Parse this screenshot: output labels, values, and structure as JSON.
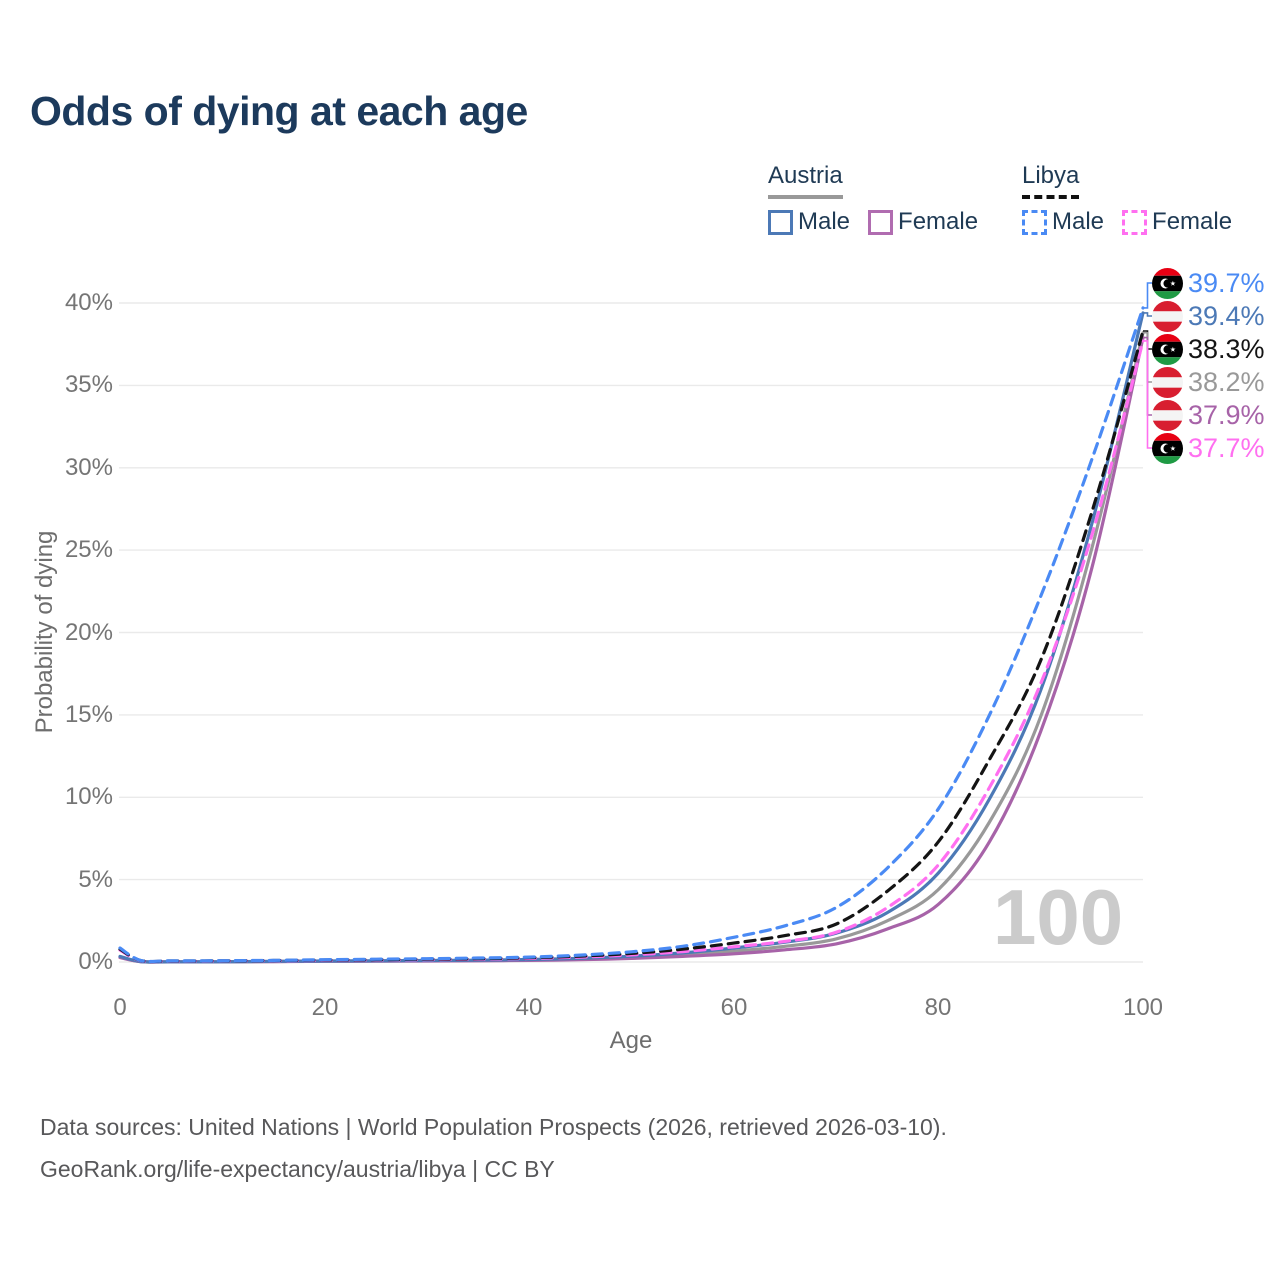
{
  "title": "Odds of dying at each age",
  "watermark": "100",
  "legend": {
    "austria": {
      "label": "Austria",
      "male_label": "Male",
      "female_label": "Female"
    },
    "libya": {
      "label": "Libya",
      "male_label": "Male",
      "female_label": "Female"
    }
  },
  "footer": {
    "line1": "Data sources: United Nations | World Population Prospects (2026, retrieved 2026-03-10).",
    "line2": "GeoRank.org/life-expectancy/austria/libya | CC BY"
  },
  "colors": {
    "title": "#1C3A5C",
    "legend_text": "#1F3A54",
    "axis_text": "#757575",
    "grid": "#EAEAEA",
    "watermark": "#CBCBCB",
    "footer_text": "#58585A",
    "austria_male": "#4C79B6",
    "austria_female": "#A763A8",
    "austria_both": "#999999",
    "libya_male": "#4A8AF4",
    "libya_female": "#FF6FF0",
    "libya_both": "#141414"
  },
  "chart_data": {
    "type": "line",
    "title": "Odds of dying at each age",
    "xlabel": "Age",
    "ylabel": "Probability of dying",
    "xlim": [
      0,
      100
    ],
    "ylim_percent": [
      0,
      40
    ],
    "x_ticks": [
      0,
      20,
      40,
      60,
      80,
      100
    ],
    "y_ticks_percent": [
      0,
      5,
      10,
      15,
      20,
      25,
      30,
      35,
      40
    ],
    "grid": "horizontal",
    "legend_position": "top-right",
    "hover_age": "100",
    "series": [
      {
        "id": "austria_both",
        "country": "Austria",
        "sex": "both",
        "color": "#999999",
        "dashed": false,
        "points": [
          [
            0,
            0.3
          ],
          [
            2,
            0.026
          ],
          [
            5,
            0.01
          ],
          [
            10,
            0.012
          ],
          [
            15,
            0.03
          ],
          [
            20,
            0.05
          ],
          [
            25,
            0.06
          ],
          [
            30,
            0.07
          ],
          [
            35,
            0.09
          ],
          [
            40,
            0.12
          ],
          [
            45,
            0.18
          ],
          [
            50,
            0.28
          ],
          [
            55,
            0.44
          ],
          [
            60,
            0.66
          ],
          [
            65,
            0.95
          ],
          [
            70,
            1.4
          ],
          [
            75,
            2.5
          ],
          [
            80,
            4.4
          ],
          [
            85,
            8.5
          ],
          [
            90,
            14.9
          ],
          [
            95,
            25.1
          ],
          [
            100,
            38.2
          ]
        ]
      },
      {
        "id": "austria_female",
        "country": "Austria",
        "sex": "female",
        "color": "#A763A8",
        "dashed": false,
        "points": [
          [
            0,
            0.27
          ],
          [
            2,
            0.022
          ],
          [
            5,
            0.009
          ],
          [
            10,
            0.01
          ],
          [
            15,
            0.025
          ],
          [
            20,
            0.04
          ],
          [
            25,
            0.05
          ],
          [
            30,
            0.06
          ],
          [
            35,
            0.075
          ],
          [
            40,
            0.1
          ],
          [
            45,
            0.14
          ],
          [
            50,
            0.22
          ],
          [
            55,
            0.34
          ],
          [
            60,
            0.5
          ],
          [
            65,
            0.74
          ],
          [
            70,
            1.1
          ],
          [
            75,
            2.0
          ],
          [
            80,
            3.5
          ],
          [
            85,
            7.3
          ],
          [
            90,
            14.0
          ],
          [
            95,
            23.9
          ],
          [
            100,
            37.9
          ]
        ]
      },
      {
        "id": "austria_male",
        "country": "Austria",
        "sex": "male",
        "color": "#4C79B6",
        "dashed": false,
        "points": [
          [
            0,
            0.34
          ],
          [
            2,
            0.03
          ],
          [
            5,
            0.012
          ],
          [
            10,
            0.014
          ],
          [
            15,
            0.04
          ],
          [
            20,
            0.06
          ],
          [
            25,
            0.07
          ],
          [
            30,
            0.09
          ],
          [
            35,
            0.11
          ],
          [
            40,
            0.15
          ],
          [
            45,
            0.22
          ],
          [
            50,
            0.35
          ],
          [
            55,
            0.55
          ],
          [
            60,
            0.85
          ],
          [
            65,
            1.2
          ],
          [
            70,
            1.75
          ],
          [
            75,
            3.0
          ],
          [
            80,
            5.4
          ],
          [
            85,
            9.9
          ],
          [
            90,
            16.5
          ],
          [
            95,
            26.6
          ],
          [
            100,
            39.4
          ]
        ]
      },
      {
        "id": "libya_female",
        "country": "Libya",
        "sex": "female",
        "color": "#FF6FF0",
        "dashed": true,
        "points": [
          [
            0,
            0.72
          ],
          [
            2,
            0.08
          ],
          [
            5,
            0.05
          ],
          [
            10,
            0.06
          ],
          [
            15,
            0.08
          ],
          [
            20,
            0.1
          ],
          [
            25,
            0.12
          ],
          [
            30,
            0.14
          ],
          [
            35,
            0.17
          ],
          [
            40,
            0.22
          ],
          [
            45,
            0.3
          ],
          [
            50,
            0.43
          ],
          [
            55,
            0.63
          ],
          [
            60,
            0.92
          ],
          [
            65,
            1.25
          ],
          [
            70,
            1.8
          ],
          [
            75,
            3.3
          ],
          [
            80,
            5.9
          ],
          [
            85,
            10.6
          ],
          [
            90,
            16.9
          ],
          [
            95,
            25.9
          ],
          [
            100,
            37.7
          ]
        ]
      },
      {
        "id": "libya_both",
        "country": "Libya",
        "sex": "both",
        "color": "#141414",
        "dashed": true,
        "points": [
          [
            0,
            0.78
          ],
          [
            2,
            0.09
          ],
          [
            5,
            0.06
          ],
          [
            10,
            0.07
          ],
          [
            15,
            0.09
          ],
          [
            20,
            0.12
          ],
          [
            25,
            0.14
          ],
          [
            30,
            0.17
          ],
          [
            35,
            0.2
          ],
          [
            40,
            0.26
          ],
          [
            45,
            0.36
          ],
          [
            50,
            0.52
          ],
          [
            55,
            0.78
          ],
          [
            60,
            1.15
          ],
          [
            65,
            1.6
          ],
          [
            70,
            2.3
          ],
          [
            75,
            4.3
          ],
          [
            80,
            7.3
          ],
          [
            85,
            12.3
          ],
          [
            90,
            18.3
          ],
          [
            95,
            27.3
          ],
          [
            100,
            38.3
          ]
        ]
      },
      {
        "id": "libya_male",
        "country": "Libya",
        "sex": "male",
        "color": "#4A8AF4",
        "dashed": true,
        "points": [
          [
            0,
            0.85
          ],
          [
            2,
            0.1
          ],
          [
            5,
            0.07
          ],
          [
            10,
            0.08
          ],
          [
            15,
            0.1
          ],
          [
            20,
            0.14
          ],
          [
            25,
            0.17
          ],
          [
            30,
            0.2
          ],
          [
            35,
            0.24
          ],
          [
            40,
            0.3
          ],
          [
            45,
            0.42
          ],
          [
            50,
            0.62
          ],
          [
            55,
            0.95
          ],
          [
            60,
            1.5
          ],
          [
            65,
            2.2
          ],
          [
            70,
            3.3
          ],
          [
            75,
            5.7
          ],
          [
            80,
            9.3
          ],
          [
            85,
            15.0
          ],
          [
            90,
            22.2
          ],
          [
            95,
            30.5
          ],
          [
            100,
            39.7
          ]
        ]
      }
    ],
    "end_labels": [
      {
        "flag": "LY",
        "country": "Libya",
        "value": "39.7%",
        "color": "#4A8AF4",
        "series": "libya_male"
      },
      {
        "flag": "AT",
        "country": "Austria",
        "value": "39.4%",
        "color": "#4C79B6",
        "series": "austria_male"
      },
      {
        "flag": "LY",
        "country": "Libya",
        "value": "38.3%",
        "color": "#141414",
        "series": "libya_both"
      },
      {
        "flag": "AT",
        "country": "Austria",
        "value": "38.2%",
        "color": "#999999",
        "series": "austria_both"
      },
      {
        "flag": "AT",
        "country": "Austria",
        "value": "37.9%",
        "color": "#A763A8",
        "series": "austria_female"
      },
      {
        "flag": "LY",
        "country": "Libya",
        "value": "37.7%",
        "color": "#FF6FF0",
        "series": "libya_female"
      }
    ]
  }
}
